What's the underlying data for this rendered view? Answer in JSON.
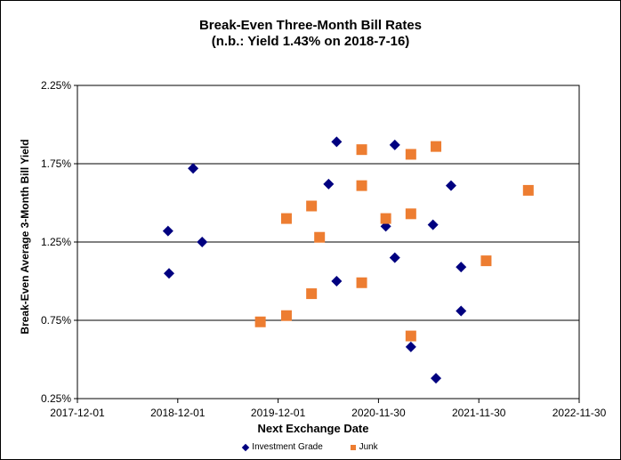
{
  "chart_data": {
    "type": "scatter",
    "title": "Break-Even Three-Month Bill Rates",
    "subtitle": "(n.b.: Yield 1.43% on 2018-7-16)",
    "xlabel": "Next Exchange Date",
    "ylabel": "Break-Even Average 3-Month  Bill Yield",
    "xlim": [
      2017.917,
      2022.917
    ],
    "ylim": [
      0.25,
      2.25
    ],
    "x_ticks": [
      2017.917,
      2018.917,
      2019.917,
      2020.917,
      2021.917,
      2022.917
    ],
    "x_tick_labels": [
      "2017-12-01",
      "2018-12-01",
      "2019-12-01",
      "2020-11-30",
      "2021-11-30",
      "2022-11-30"
    ],
    "y_ticks": [
      0.25,
      0.75,
      1.25,
      1.75,
      2.25
    ],
    "y_tick_labels": [
      "0.25%",
      "0.75%",
      "1.25%",
      "1.75%",
      "2.25%"
    ],
    "gridlines": [
      0.75,
      1.25,
      1.75
    ],
    "legend_position": "bottom",
    "series": [
      {
        "name": "Investment Grade",
        "marker": "diamond",
        "color": "#000080",
        "points": [
          [
            2018.82,
            1.32
          ],
          [
            2019.07,
            1.72
          ],
          [
            2019.16,
            1.25
          ],
          [
            2018.83,
            1.05
          ],
          [
            2020.5,
            1.89
          ],
          [
            2020.42,
            1.62
          ],
          [
            2020.5,
            1.0
          ],
          [
            2021.08,
            1.87
          ],
          [
            2020.99,
            1.35
          ],
          [
            2021.08,
            1.15
          ],
          [
            2021.24,
            0.58
          ],
          [
            2021.46,
            1.36
          ],
          [
            2021.64,
            1.61
          ],
          [
            2021.74,
            1.09
          ],
          [
            2021.74,
            0.81
          ],
          [
            2021.49,
            0.38
          ]
        ]
      },
      {
        "name": "Junk",
        "marker": "square",
        "color": "#ED7D31",
        "points": [
          [
            2019.74,
            0.74
          ],
          [
            2020.0,
            0.78
          ],
          [
            2020.0,
            1.4
          ],
          [
            2020.25,
            0.92
          ],
          [
            2020.25,
            1.48
          ],
          [
            2020.33,
            1.28
          ],
          [
            2020.75,
            1.84
          ],
          [
            2020.75,
            1.61
          ],
          [
            2020.75,
            0.99
          ],
          [
            2020.99,
            1.4
          ],
          [
            2021.24,
            1.81
          ],
          [
            2021.24,
            1.43
          ],
          [
            2021.24,
            0.65
          ],
          [
            2021.49,
            1.86
          ],
          [
            2021.99,
            1.13
          ],
          [
            2022.41,
            1.58
          ]
        ]
      }
    ]
  }
}
